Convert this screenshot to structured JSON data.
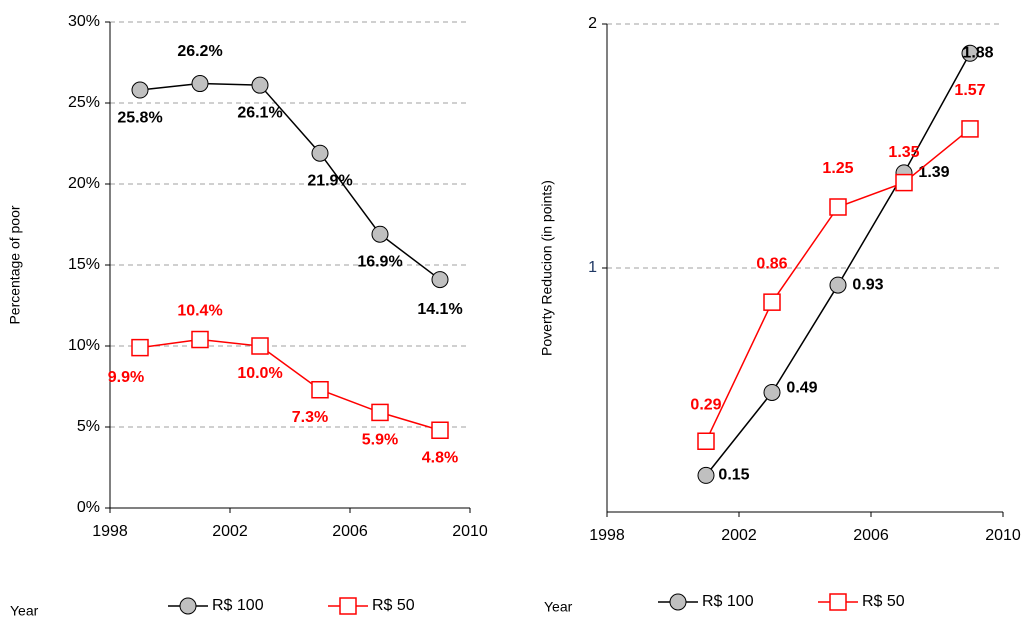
{
  "chart_data": [
    {
      "type": "line",
      "y_label": "Percentage of poor",
      "x_label": "Year",
      "xlim": [
        1998,
        2010
      ],
      "xticks": [
        1998,
        2002,
        2006,
        2010
      ],
      "ylim": [
        0,
        30
      ],
      "yticks": [
        {
          "value": 0,
          "label": "0%"
        },
        {
          "value": 5,
          "label": "5%"
        },
        {
          "value": 10,
          "label": "10%"
        },
        {
          "value": 15,
          "label": "15%"
        },
        {
          "value": 20,
          "label": "20%"
        },
        {
          "value": 25,
          "label": "25%"
        },
        {
          "value": 30,
          "label": "30%"
        }
      ],
      "grid": true,
      "legend": "bottom",
      "x": [
        1999,
        2001,
        2003,
        2005,
        2007,
        2009
      ],
      "series": [
        {
          "name": "R$ 100",
          "color": "#000000",
          "marker": "circle",
          "values": [
            25.8,
            26.2,
            26.1,
            21.9,
            16.9,
            14.1
          ],
          "value_labels": [
            "25.8%",
            "26.2%",
            "26.1%",
            "21.9%",
            "16.9%",
            "14.1%"
          ]
        },
        {
          "name": "R$ 50",
          "color": "#ff0000",
          "marker": "square",
          "values": [
            9.9,
            10.4,
            10.0,
            7.3,
            5.9,
            4.8
          ],
          "value_labels": [
            "9.9%",
            "10.4%",
            "10.0%",
            "7.3%",
            "5.9%",
            "4.8%"
          ]
        }
      ]
    },
    {
      "type": "line",
      "y_label": "Poverty Reducion (in points)",
      "x_label": "Year",
      "xlim": [
        1998,
        2010
      ],
      "xticks": [
        1998,
        2002,
        2006,
        2010
      ],
      "ylim": [
        0,
        2
      ],
      "yticks": [
        1,
        2
      ],
      "grid": true,
      "legend": "bottom",
      "x": [
        2001,
        2003,
        2005,
        2007,
        2009
      ],
      "series": [
        {
          "name": "R$ 100",
          "color": "#000000",
          "marker": "circle",
          "values": [
            0.15,
            0.49,
            0.93,
            1.39,
            1.88
          ]
        },
        {
          "name": "R$ 50",
          "color": "#ff0000",
          "marker": "square",
          "values": [
            0.29,
            0.86,
            1.25,
            1.35,
            1.57
          ]
        }
      ]
    }
  ]
}
